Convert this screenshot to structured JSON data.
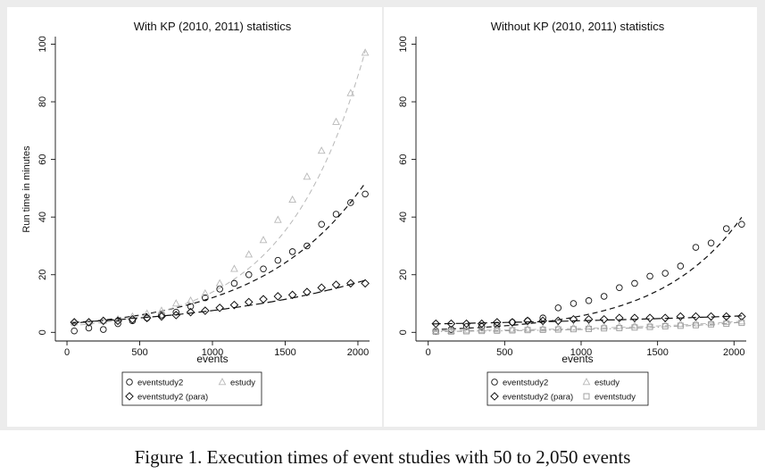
{
  "caption": "Figure 1. Execution times of event studies with 50 to 2,050 events",
  "colors": {
    "background": "#ececec",
    "panel": "#ffffff",
    "black": "#111111",
    "gray": "#b8b8b8"
  },
  "chart_data": [
    {
      "type": "scatter",
      "title": "With KP (2010, 2011) statistics",
      "xlabel": "events",
      "ylabel": "Run time in minutes",
      "xlim": [
        -80,
        2080
      ],
      "ylim": [
        -3,
        102
      ],
      "xticks": [
        0,
        500,
        1000,
        1500,
        2000
      ],
      "yticks": [
        0,
        20,
        40,
        60,
        80,
        100
      ],
      "xtick_labels": [
        "0",
        "500",
        "1000",
        "1500",
        "2000"
      ],
      "ytick_labels": [
        "0",
        "20",
        "40",
        "60",
        "80",
        "100"
      ],
      "x": [
        50,
        150,
        250,
        350,
        450,
        550,
        650,
        750,
        850,
        950,
        1050,
        1150,
        1250,
        1350,
        1450,
        1550,
        1650,
        1750,
        1850,
        1950,
        2050
      ],
      "series": [
        {
          "name": "eventstudy2",
          "marker": "circle",
          "color": "#111111",
          "values": [
            0.5,
            1.5,
            1,
            3,
            4,
            5,
            6,
            7,
            9,
            12,
            15,
            17,
            20,
            22,
            25,
            28,
            30,
            37.5,
            41,
            45,
            48
          ],
          "fit": {
            "style": "dash",
            "a": 3.0,
            "b": 0.00139,
            "lw": 1.2
          }
        },
        {
          "name": "estudy",
          "marker": "triangle",
          "color": "#b8b8b8",
          "values": [
            3.5,
            3.5,
            4,
            4.5,
            5.5,
            6.5,
            7.5,
            10,
            11,
            13.5,
            17,
            22,
            27,
            32,
            39,
            46,
            54,
            63,
            73,
            83,
            97
          ],
          "fit": {
            "style": "dash",
            "a": 2.2,
            "b": 0.00185,
            "lw": 1.0
          }
        },
        {
          "name": "eventstudy2 (para)",
          "marker": "diamond",
          "color": "#111111",
          "values": [
            3.5,
            3.5,
            4,
            4,
            4.5,
            5,
            5.5,
            6,
            7,
            7.5,
            8.5,
            9.5,
            10.5,
            11.5,
            12.5,
            13,
            14,
            15.5,
            16.5,
            17,
            17
          ],
          "fit": {
            "style": "longdash",
            "a": 3.3,
            "b": 0.00083,
            "lw": 1.2
          }
        }
      ],
      "legend": {
        "position": "bottom",
        "rows": [
          [
            "eventstudy2",
            "estudy"
          ],
          [
            "eventstudy2 (para)"
          ]
        ]
      }
    },
    {
      "type": "scatter",
      "title": "Without KP (2010, 2011) statistics",
      "xlabel": "events",
      "ylabel": "",
      "xlim": [
        -80,
        2080
      ],
      "ylim": [
        -3,
        102
      ],
      "xticks": [
        0,
        500,
        1000,
        1500,
        2000
      ],
      "yticks": [
        0,
        20,
        40,
        60,
        80,
        100
      ],
      "xtick_labels": [
        "0",
        "500",
        "1000",
        "1500",
        "2000"
      ],
      "ytick_labels": [
        "0",
        "20",
        "40",
        "60",
        "80",
        "100"
      ],
      "x": [
        50,
        150,
        250,
        350,
        450,
        550,
        650,
        750,
        850,
        950,
        1050,
        1150,
        1250,
        1350,
        1450,
        1550,
        1650,
        1750,
        1850,
        1950,
        2050
      ],
      "series": [
        {
          "name": "eventstudy2",
          "marker": "circle",
          "color": "#111111",
          "values": [
            0.5,
            1,
            2,
            2,
            2.5,
            3.5,
            4,
            5,
            8.5,
            10,
            11,
            12.5,
            15.5,
            17,
            19.5,
            20.5,
            23,
            29.5,
            31,
            36,
            37.5
          ],
          "fit": {
            "style": "dash",
            "a": 0.9,
            "b": 0.00185,
            "lw": 1.2
          }
        },
        {
          "name": "estudy",
          "marker": "triangle",
          "color": "#b8b8b8",
          "values": [
            0.5,
            0.5,
            0.7,
            0.8,
            1,
            1,
            1.2,
            1.3,
            1.5,
            1.6,
            1.8,
            2,
            2.1,
            2.3,
            2.5,
            2.7,
            2.9,
            3.1,
            3.3,
            3.6,
            3.8
          ],
          "fit": {
            "style": "dash",
            "a": 0.5,
            "b": 0.001,
            "lw": 1.0
          }
        },
        {
          "name": "eventstudy2 (para)",
          "marker": "diamond",
          "color": "#111111",
          "values": [
            3,
            3,
            3,
            3,
            3.5,
            3.5,
            4,
            4,
            4,
            4.5,
            4.5,
            4.5,
            5,
            5,
            5,
            5,
            5.5,
            5.5,
            5.5,
            5.5,
            5.5
          ],
          "fit": {
            "style": "longdash",
            "a": 2.9,
            "b": 0.00033,
            "lw": 1.2
          }
        },
        {
          "name": "eventstudy",
          "marker": "square",
          "color": "#999999",
          "values": [
            0.2,
            0.3,
            0.4,
            0.5,
            0.6,
            0.7,
            0.8,
            0.9,
            1,
            1.1,
            1.2,
            1.4,
            1.5,
            1.7,
            1.9,
            2.1,
            2.3,
            2.5,
            2.8,
            3,
            3.3
          ],
          "fit": {
            "style": "dashdot",
            "a": 0.3,
            "b": 0.0012,
            "lw": 1.0
          }
        }
      ],
      "legend": {
        "position": "bottom",
        "rows": [
          [
            "eventstudy2",
            "estudy"
          ],
          [
            "eventstudy2 (para)",
            "eventstudy"
          ]
        ]
      }
    }
  ]
}
